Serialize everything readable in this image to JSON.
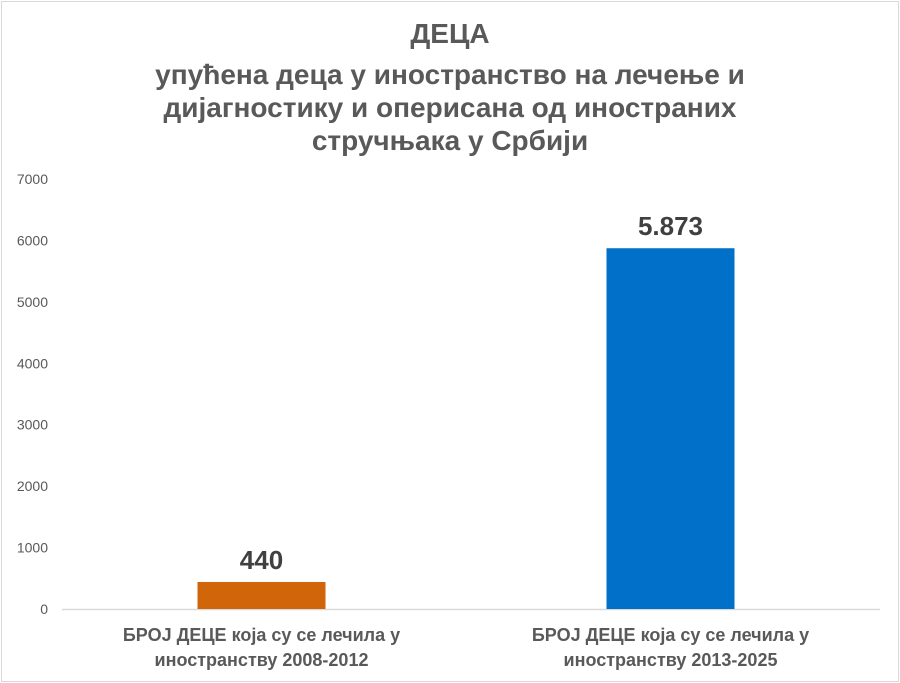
{
  "chart_data": {
    "type": "bar",
    "title": "ДЕЦА",
    "subtitle_lines": [
      "упућена деца у иностранство на лечење и",
      "дијагностику и оперисана од иностраних",
      "стручњака у Србији"
    ],
    "categories": [
      [
        "БРОЈ ДЕЦЕ која су се лечила у",
        "иностранству 2008-2012"
      ],
      [
        "БРОЈ ДЕЦЕ која су се лечила у",
        "иностранству 2013-2025"
      ]
    ],
    "values": [
      440,
      5873
    ],
    "data_labels": [
      "440",
      "5.873"
    ],
    "bar_colors": [
      "#D0650A",
      "#0070C8"
    ],
    "ylim": [
      0,
      7000
    ],
    "yticks": [
      0,
      1000,
      2000,
      3000,
      4000,
      5000,
      6000,
      7000
    ],
    "xlabel": "",
    "ylabel": "",
    "grid": false,
    "legend": "none"
  }
}
